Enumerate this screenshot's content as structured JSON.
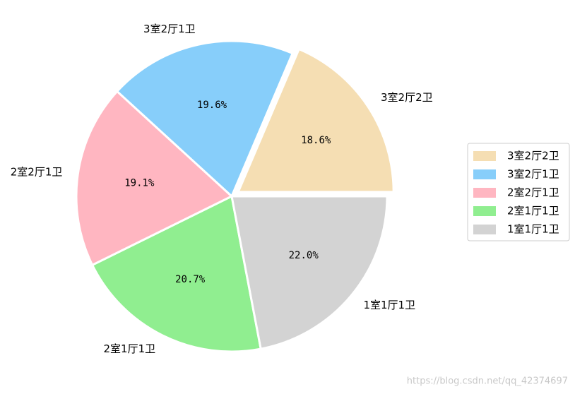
{
  "chart_data": {
    "type": "pie",
    "categories": [
      "3室2厅2卫",
      "3室2厅1卫",
      "2室2厅1卫",
      "2室1厅1卫",
      "1室1厅1卫"
    ],
    "values": [
      18.6,
      19.6,
      19.1,
      20.7,
      22.0
    ],
    "value_labels": [
      "18.6%",
      "19.6%",
      "19.1%",
      "20.7%",
      "22.0%"
    ],
    "colors": [
      "#f5deb3",
      "#87cefa",
      "#ffb6c1",
      "#90ee90",
      "#d3d3d3"
    ],
    "explode": [
      0.05,
      0,
      0,
      0,
      0
    ],
    "legend": "right",
    "watermark": "https://blog.csdn.net/qq_42374697"
  }
}
